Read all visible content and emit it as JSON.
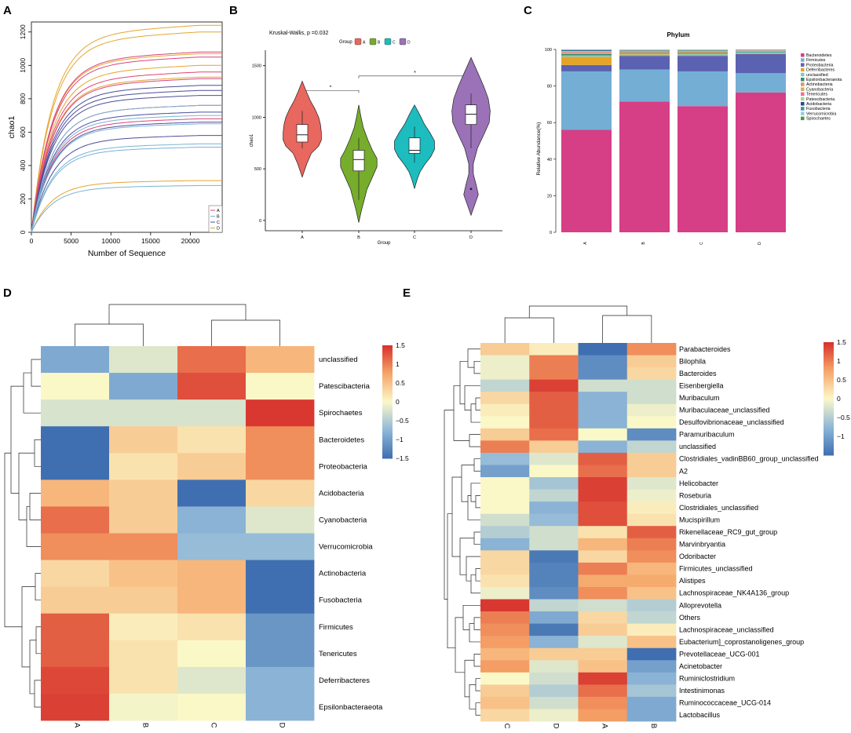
{
  "colors": {
    "A": "#e8675e",
    "B": "#76ad2c",
    "C": "#1cbcbf",
    "D": "#9b72b8",
    "lineA": "#d94478",
    "lineB": "#7ab2d4",
    "lineC": "#4d4d9a",
    "lineD": "#e5a42e"
  },
  "heat_colors": {
    "low": "#3f6fb1",
    "mid_low": "#8fb8d8",
    "mid": "#fbf8c8",
    "mid_high": "#f6a568",
    "high": "#d7302c"
  },
  "panels": {
    "A": "A",
    "B": "B",
    "C": "C",
    "D": "D",
    "E": "E"
  },
  "chart_data": [
    {
      "id": "A",
      "type": "line",
      "title": "",
      "xlabel": "Number of Sequence",
      "ylabel": "chao1",
      "xlim": [
        0,
        24000
      ],
      "ylim": [
        0,
        1260
      ],
      "xticks": [
        0,
        5000,
        10000,
        15000,
        20000
      ],
      "xtick_labels": [
        "0",
        "5000",
        "10000",
        "15000",
        "20000"
      ],
      "yticks": [
        0,
        200,
        400,
        600,
        800,
        1000,
        1200
      ],
      "ytick_labels": [
        "0",
        "200",
        "400",
        "600",
        "800",
        "1000",
        "1200"
      ],
      "legend": [
        {
          "label": "A",
          "group": "A"
        },
        {
          "label": "B",
          "group": "B"
        },
        {
          "label": "C",
          "group": "C"
        },
        {
          "label": "D",
          "group": "D"
        }
      ],
      "legend_position": "bottom-right",
      "series": [
        {
          "group": "D",
          "final": 1240
        },
        {
          "group": "D",
          "final": 1200
        },
        {
          "group": "D",
          "final": 1070
        },
        {
          "group": "D",
          "final": 1000
        },
        {
          "group": "D",
          "final": 930
        },
        {
          "group": "D",
          "final": 310
        },
        {
          "group": "A",
          "final": 1080
        },
        {
          "group": "A",
          "final": 1050
        },
        {
          "group": "A",
          "final": 960
        },
        {
          "group": "A",
          "final": 920
        },
        {
          "group": "A",
          "final": 760
        },
        {
          "group": "A",
          "final": 680
        },
        {
          "group": "C",
          "final": 880
        },
        {
          "group": "C",
          "final": 850
        },
        {
          "group": "C",
          "final": 820
        },
        {
          "group": "C",
          "final": 720
        },
        {
          "group": "C",
          "final": 660
        },
        {
          "group": "C",
          "final": 580
        },
        {
          "group": "B",
          "final": 760
        },
        {
          "group": "B",
          "final": 700
        },
        {
          "group": "B",
          "final": 650
        },
        {
          "group": "B",
          "final": 530
        },
        {
          "group": "B",
          "final": 510
        },
        {
          "group": "B",
          "final": 280
        }
      ]
    },
    {
      "id": "B",
      "type": "violin",
      "title": "Kruskal-Wallis, p =0.032",
      "xlabel": "Group",
      "ylabel": "chao1",
      "ylim": [
        -100,
        1650
      ],
      "yticks": [
        0,
        500,
        1000,
        1500
      ],
      "ytick_labels": [
        "0",
        "500",
        "1000",
        "1500"
      ],
      "legend_title": "Group",
      "legend": [
        "A",
        "B",
        "C",
        "D"
      ],
      "legend_position": "top",
      "significance": [
        {
          "from": "A",
          "to": "B",
          "label": "*",
          "y": 1260
        },
        {
          "from": "B",
          "to": "D",
          "label": "*",
          "y": 1400
        }
      ],
      "groups": [
        {
          "name": "A",
          "label": "A",
          "q1": 760,
          "median": 830,
          "q3": 930,
          "whisker_low": 700,
          "whisker_high": 1060,
          "violin": [
            [
              420,
              0
            ],
            [
              550,
              10
            ],
            [
              650,
              20
            ],
            [
              720,
              36
            ],
            [
              780,
              42
            ],
            [
              850,
              42
            ],
            [
              930,
              40
            ],
            [
              1000,
              36
            ],
            [
              1080,
              28
            ],
            [
              1160,
              18
            ],
            [
              1250,
              9
            ],
            [
              1350,
              0
            ]
          ],
          "outliers": []
        },
        {
          "name": "B",
          "label": "B",
          "q1": 480,
          "median": 590,
          "q3": 680,
          "whisker_low": 200,
          "whisker_high": 800,
          "violin": [
            [
              -20,
              0
            ],
            [
              100,
              6
            ],
            [
              200,
              12
            ],
            [
              300,
              18
            ],
            [
              420,
              30
            ],
            [
              520,
              40
            ],
            [
              600,
              40
            ],
            [
              680,
              30
            ],
            [
              780,
              20
            ],
            [
              900,
              10
            ],
            [
              1000,
              5
            ],
            [
              1120,
              0
            ]
          ],
          "outliers": []
        },
        {
          "name": "C",
          "label": "C",
          "q1": 650,
          "median": 680,
          "q3": 800,
          "whisker_low": 560,
          "whisker_high": 910,
          "violin": [
            [
              310,
              0
            ],
            [
              400,
              6
            ],
            [
              470,
              12
            ],
            [
              540,
              22
            ],
            [
              620,
              36
            ],
            [
              690,
              44
            ],
            [
              770,
              44
            ],
            [
              850,
              34
            ],
            [
              930,
              22
            ],
            [
              1020,
              12
            ],
            [
              1120,
              0
            ]
          ],
          "outliers": []
        },
        {
          "name": "D",
          "label": "D",
          "q1": 930,
          "median": 1030,
          "q3": 1120,
          "whisker_low": 700,
          "whisker_high": 1230,
          "violin": [
            [
              50,
              0
            ],
            [
              150,
              8
            ],
            [
              250,
              16
            ],
            [
              350,
              11
            ],
            [
              450,
              5
            ],
            [
              550,
              5
            ],
            [
              700,
              14
            ],
            [
              850,
              30
            ],
            [
              950,
              40
            ],
            [
              1060,
              42
            ],
            [
              1180,
              38
            ],
            [
              1300,
              28
            ],
            [
              1420,
              16
            ],
            [
              1520,
              6
            ],
            [
              1580,
              0
            ]
          ],
          "outliers": [
            305
          ]
        }
      ]
    },
    {
      "id": "C",
      "type": "bar",
      "stacked": true,
      "title": "Phylum",
      "xlabel": "",
      "ylabel": "Relative Abundance(%)",
      "ylim": [
        0,
        100
      ],
      "yticks": [
        0,
        20,
        40,
        60,
        80,
        100
      ],
      "ytick_labels": [
        "0",
        "20",
        "40",
        "60",
        "80",
        "100"
      ],
      "categories": [
        "A",
        "B",
        "C",
        "D"
      ],
      "legend_position": "right",
      "series": [
        {
          "name": "Bacteroidetes",
          "color": "#d63e86",
          "values": [
            56,
            71.5,
            69,
            76.5
          ]
        },
        {
          "name": "Firmicutes",
          "color": "#74aed5",
          "values": [
            32,
            17.5,
            19,
            10.5
          ]
        },
        {
          "name": "Proteobacteria",
          "color": "#5b62b2",
          "values": [
            3.5,
            7.5,
            8.5,
            10.5
          ]
        },
        {
          "name": "Deferribacteres",
          "color": "#e5a427",
          "values": [
            4.5,
            0.8,
            0.6,
            0.4
          ]
        },
        {
          "name": "unclassified",
          "color": "#7fc8c4",
          "values": [
            0.8,
            0.5,
            0.6,
            0.5
          ]
        },
        {
          "name": "Epsilonbacteraeota",
          "color": "#2d8f6f",
          "values": [
            0.7,
            0.4,
            0.4,
            0.3
          ]
        },
        {
          "name": "Actinobacteria",
          "color": "#e88f66",
          "values": [
            0.5,
            0.4,
            0.4,
            0.3
          ]
        },
        {
          "name": "Cyanobacteria",
          "color": "#c8b45a",
          "values": [
            0.4,
            0.3,
            0.3,
            0.2
          ]
        },
        {
          "name": "Tenericutes",
          "color": "#f06ba2",
          "values": [
            0.4,
            0.3,
            0.3,
            0.2
          ]
        },
        {
          "name": "Patescibacteria",
          "color": "#a4d68e",
          "values": [
            0.3,
            0.2,
            0.3,
            0.2
          ]
        },
        {
          "name": "Acidobacteria",
          "color": "#2b4a8c",
          "values": [
            0.3,
            0.2,
            0.2,
            0.1
          ]
        },
        {
          "name": "Fusobacteria",
          "color": "#3c8fbd",
          "values": [
            0.2,
            0.1,
            0.1,
            0.1
          ]
        },
        {
          "name": "Verrucomicrobia",
          "color": "#8fd1e8",
          "values": [
            0.2,
            0.1,
            0.1,
            0.1
          ]
        },
        {
          "name": "Spirochaetes",
          "color": "#4a9a3c",
          "values": [
            0.2,
            0.1,
            0.1,
            0.1
          ]
        }
      ]
    },
    {
      "id": "D",
      "type": "heatmap",
      "columns": [
        "A",
        "B",
        "C",
        "D"
      ],
      "rows": [
        "unclassified",
        "Patescibacteria",
        "Spirochaetes",
        "Bacteroidetes",
        "Proteobacteria",
        "Acidobacteria",
        "Cyanobacteria",
        "Verrucomicrobia",
        "Actinobacteria",
        "Fusobacteria",
        "Firmicutes",
        "Tenericutes",
        "Deferribacteres",
        "Epsilonbacteraeota"
      ],
      "values": [
        [
          -0.9,
          -0.2,
          1.1,
          0.6
        ],
        [
          0.0,
          -0.9,
          1.3,
          0.0
        ],
        [
          -0.25,
          -0.25,
          -0.25,
          1.45
        ],
        [
          -1.5,
          0.4,
          0.2,
          0.9
        ],
        [
          -1.5,
          0.2,
          0.4,
          0.9
        ],
        [
          0.6,
          0.4,
          -1.5,
          0.3
        ],
        [
          1.1,
          0.4,
          -0.8,
          -0.2
        ],
        [
          0.9,
          0.9,
          -0.7,
          -0.7
        ],
        [
          0.3,
          0.5,
          0.6,
          -1.5
        ],
        [
          0.4,
          0.4,
          0.6,
          -1.5
        ],
        [
          1.2,
          0.1,
          0.2,
          -1.1
        ],
        [
          1.2,
          0.2,
          0.0,
          -1.1
        ],
        [
          1.35,
          0.2,
          -0.2,
          -0.8
        ],
        [
          1.4,
          -0.05,
          0.0,
          -0.8
        ]
      ],
      "colorbar_ticks": [
        1.5,
        1,
        0.5,
        0,
        -0.5,
        -1,
        -1.5
      ],
      "colorbar_labels": [
        "1.5",
        "1",
        "0.5",
        "0",
        "−0.5",
        "−1",
        "−1.5"
      ],
      "vmin": -1.5,
      "vmax": 1.5
    },
    {
      "id": "E",
      "type": "heatmap",
      "columns": [
        "C",
        "D",
        "A",
        "B"
      ],
      "rows": [
        "Parabacteroides",
        "Bilophila",
        "Bacteroides",
        "Eisenbergiella",
        "Muribaculum",
        "Muribaculaceae_unclassified",
        "Desulfovibrionaceae_unclassified",
        "Paramuribaculum",
        "unclassified",
        "Clostridiales_vadinBB60_group_unclassified",
        "A2",
        "Helicobacter",
        "Roseburia",
        "Clostridiales_unclassified",
        "Mucispirillum",
        "Rikenellaceae_RC9_gut_group",
        "Marvinbryantia",
        "Odoribacter",
        "Firmicutes_unclassified",
        "Alistipes",
        "Lachnospiraceae_NK4A136_group",
        "Alloprevotella",
        "Others",
        "Lachnospiraceae_unclassified",
        "Eubacterium]_coprostanoligenes_group",
        "Prevotellaceae_UCG-001",
        "Acinetobacter",
        "Ruminiclostridium",
        "Intestinimonas",
        "Ruminococcaceae_UCG-014",
        "Lactobacillus"
      ],
      "values": [
        [
          0.4,
          0.1,
          -1.5,
          0.9
        ],
        [
          -0.1,
          1.0,
          -1.2,
          0.4
        ],
        [
          -0.1,
          1.0,
          -1.2,
          0.3
        ],
        [
          -0.4,
          1.4,
          -0.3,
          -0.3
        ],
        [
          0.3,
          1.2,
          -0.8,
          -0.3
        ],
        [
          0.1,
          1.2,
          -0.8,
          -0.1
        ],
        [
          0.0,
          1.2,
          -0.8,
          0.0
        ],
        [
          0.4,
          1.1,
          0.0,
          -1.2
        ],
        [
          1.0,
          0.4,
          -0.8,
          -0.4
        ],
        [
          -0.7,
          -0.2,
          1.2,
          0.4
        ],
        [
          -1.0,
          0.0,
          1.1,
          0.4
        ],
        [
          0.0,
          -0.6,
          1.4,
          -0.2
        ],
        [
          0.0,
          -0.4,
          1.4,
          -0.1
        ],
        [
          0.0,
          -0.8,
          1.3,
          0.1
        ],
        [
          -0.3,
          -0.7,
          1.3,
          0.2
        ],
        [
          -0.5,
          -0.3,
          0.2,
          1.2
        ],
        [
          -0.8,
          -0.3,
          0.6,
          1.0
        ],
        [
          0.3,
          -1.4,
          0.3,
          0.9
        ],
        [
          0.3,
          -1.3,
          1.0,
          0.6
        ],
        [
          0.2,
          -1.3,
          0.7,
          0.7
        ],
        [
          -0.1,
          -1.2,
          0.9,
          0.5
        ],
        [
          1.45,
          -0.4,
          -0.3,
          -0.5
        ],
        [
          1.0,
          -0.9,
          0.3,
          -0.4
        ],
        [
          0.9,
          -1.4,
          0.4,
          0.1
        ],
        [
          0.8,
          -0.8,
          -0.2,
          0.5
        ],
        [
          0.6,
          0.4,
          0.4,
          -1.5
        ],
        [
          0.8,
          -0.2,
          0.5,
          -1.0
        ],
        [
          0.0,
          -0.3,
          1.4,
          -0.8
        ],
        [
          0.4,
          -0.5,
          1.1,
          -0.6
        ],
        [
          0.5,
          -0.3,
          0.9,
          -0.9
        ],
        [
          0.3,
          -0.1,
          0.8,
          -0.9
        ]
      ],
      "colorbar_ticks": [
        1.5,
        1,
        0.5,
        0,
        -0.5,
        -1
      ],
      "colorbar_labels": [
        "1.5",
        "1",
        "0.5",
        "0",
        "−0.5",
        "−1"
      ],
      "vmin": -1.5,
      "vmax": 1.5
    }
  ]
}
